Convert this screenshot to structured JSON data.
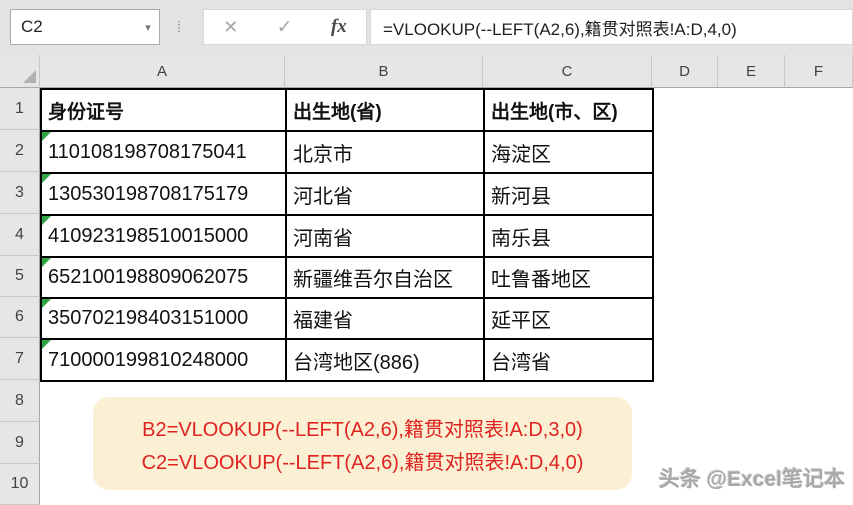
{
  "toolbar": {
    "name_box_value": "C2",
    "name_box_dropdown": "▾",
    "separator_dots": "⁞",
    "cancel_label": "✕",
    "confirm_label": "✓",
    "fx_label": "fx",
    "formula": "=VLOOKUP(--LEFT(A2,6),籍贯对照表!A:D,4,0)"
  },
  "sheet": {
    "column_headers": [
      "A",
      "B",
      "C",
      "D",
      "E",
      "F"
    ],
    "row_headers": [
      "1",
      "2",
      "3",
      "4",
      "5",
      "6",
      "7",
      "8",
      "9",
      "10"
    ],
    "table_headers": [
      "身份证号",
      "出生地(省)",
      "出生地(市、区)"
    ],
    "rows": [
      [
        "110108198708175041",
        "北京市",
        "海淀区"
      ],
      [
        "130530198708175179",
        "河北省",
        "新河县"
      ],
      [
        "410923198510015000",
        "河南省",
        "南乐县"
      ],
      [
        "652100198809062075",
        "新疆维吾尔自治区",
        "吐鲁番地区"
      ],
      [
        "350702198403151000",
        "福建省",
        "延平区"
      ],
      [
        "710000199810248000",
        "台湾地区(886)",
        "台湾省"
      ]
    ]
  },
  "annotation": {
    "line1": "B2=VLOOKUP(--LEFT(A2,6),籍贯对照表!A:D,3,0)",
    "line2": "C2=VLOOKUP(--LEFT(A2,6),籍贯对照表!A:D,4,0)"
  },
  "watermark": "头条 @Excel笔记本",
  "colors": {
    "toolbar_bg": "#E3E3E3",
    "header_bg": "#E6E6E6",
    "table_border": "#000000",
    "error_triangle_green": "#2FA546",
    "annotation_bg": "#FBF0D3",
    "annotation_text": "#DF2321",
    "watermark_text": "#A8A8A8"
  }
}
